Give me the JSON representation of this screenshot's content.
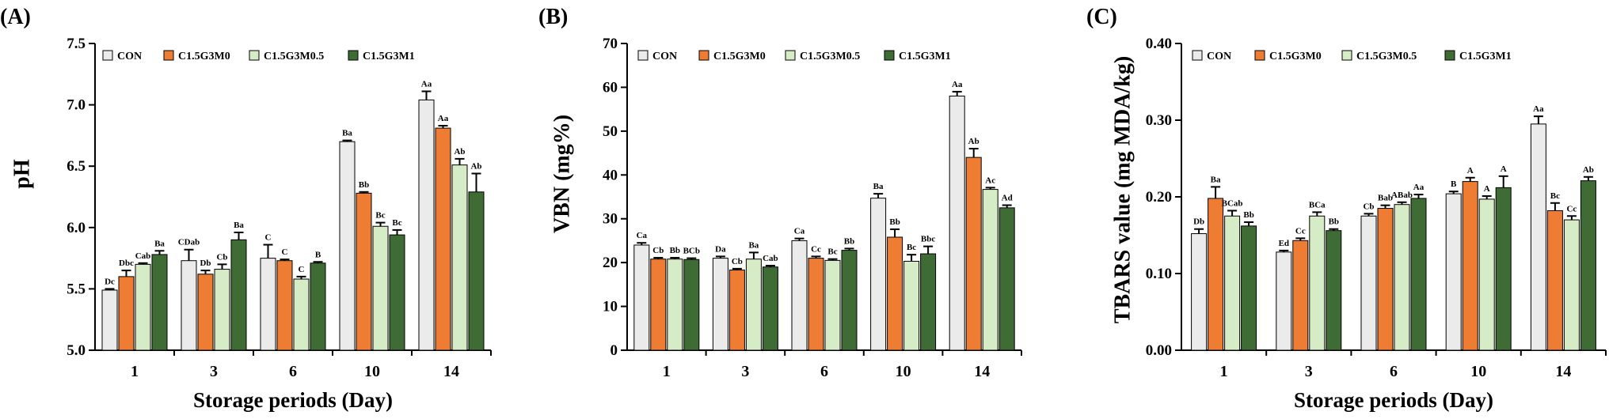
{
  "chart_data": [
    {
      "type": "bar",
      "panel_label": "(A)",
      "xlabel": "Storage periods (Day)",
      "ylabel": "pH",
      "ylim": [
        5.0,
        7.5
      ],
      "yticks": [
        "5.0",
        "5.5",
        "6.0",
        "6.5",
        "7.0",
        "7.5"
      ],
      "categories": [
        "1",
        "3",
        "6",
        "10",
        "14"
      ],
      "legend_position": "top-left",
      "series": [
        {
          "name": "CON",
          "values": [
            5.49,
            5.73,
            5.75,
            6.7,
            7.04
          ],
          "errors": [
            0.01,
            0.09,
            0.11,
            0.01,
            0.07
          ],
          "labels": [
            "Dc",
            "CDab",
            "C",
            "Ba",
            "Aa"
          ]
        },
        {
          "name": "C1.5G3M0",
          "values": [
            5.6,
            5.62,
            5.73,
            6.28,
            6.81
          ],
          "errors": [
            0.05,
            0.03,
            0.01,
            0.01,
            0.02
          ],
          "labels": [
            "Dbc",
            "Db",
            "C",
            "Bb",
            "Aa"
          ]
        },
        {
          "name": "C1.5G3M0.5",
          "values": [
            5.7,
            5.66,
            5.58,
            6.01,
            6.51
          ],
          "errors": [
            0.01,
            0.04,
            0.02,
            0.03,
            0.05
          ],
          "labels": [
            "Cab",
            "Cb",
            "C",
            "Bc",
            "Ab"
          ]
        },
        {
          "name": "C1.5G3M1",
          "values": [
            5.78,
            5.9,
            5.71,
            5.94,
            6.29
          ],
          "errors": [
            0.03,
            0.06,
            0.01,
            0.04,
            0.15
          ],
          "labels": [
            "Ba",
            "Ba",
            "B",
            "Bc",
            "Ab"
          ]
        }
      ]
    },
    {
      "type": "bar",
      "panel_label": "(B)",
      "xlabel": "",
      "ylabel": "VBN (mg%)",
      "ylim": [
        0,
        70
      ],
      "yticks": [
        "0",
        "10",
        "20",
        "30",
        "40",
        "50",
        "60",
        "70"
      ],
      "categories": [
        "1",
        "3",
        "6",
        "10",
        "14"
      ],
      "legend_position": "top-left",
      "series": [
        {
          "name": "CON",
          "values": [
            24.0,
            21.0,
            25.0,
            34.7,
            58.0
          ],
          "errors": [
            0.5,
            0.4,
            0.5,
            1.0,
            1.0
          ],
          "labels": [
            "Ca",
            "Da",
            "Ca",
            "Ba",
            "Aa"
          ]
        },
        {
          "name": "C1.5G3M0",
          "values": [
            20.8,
            18.3,
            21.0,
            25.8,
            44.0
          ],
          "errors": [
            0.3,
            0.3,
            0.4,
            1.8,
            2.0
          ],
          "labels": [
            "Cb",
            "Cb",
            "Cc",
            "Bb",
            "Ab"
          ]
        },
        {
          "name": "C1.5G3M0.5",
          "values": [
            20.8,
            20.8,
            20.5,
            20.3,
            36.7
          ],
          "errors": [
            0.3,
            1.5,
            0.3,
            1.5,
            0.4
          ],
          "labels": [
            "Bb",
            "Ba",
            "Bc",
            "Bc",
            "Ac"
          ]
        },
        {
          "name": "C1.5G3M1",
          "values": [
            20.7,
            19.0,
            22.8,
            22.0,
            32.5
          ],
          "errors": [
            0.3,
            0.3,
            0.4,
            1.7,
            0.6
          ],
          "labels": [
            "BCb",
            "Cab",
            "Bb",
            "Bbc",
            "Ad"
          ]
        }
      ]
    },
    {
      "type": "bar",
      "panel_label": "(C)",
      "xlabel": "Storage periods (Day)",
      "ylabel": "TBARS value (mg MDA/kg)",
      "ylim": [
        0.0,
        0.4
      ],
      "yticks": [
        "0.00",
        "0.10",
        "0.20",
        "0.30",
        "0.40"
      ],
      "categories": [
        "1",
        "3",
        "6",
        "10",
        "14"
      ],
      "legend_position": "top-left",
      "series": [
        {
          "name": "CON",
          "values": [
            0.152,
            0.128,
            0.175,
            0.204,
            0.295
          ],
          "errors": [
            0.006,
            0.002,
            0.003,
            0.003,
            0.01
          ],
          "labels": [
            "Db",
            "Ed",
            "Cb",
            "B",
            "Aa"
          ]
        },
        {
          "name": "C1.5G3M0",
          "values": [
            0.198,
            0.143,
            0.185,
            0.22,
            0.182
          ],
          "errors": [
            0.015,
            0.003,
            0.004,
            0.005,
            0.01
          ],
          "labels": [
            "Ba",
            "Cc",
            "Bab",
            "A",
            "Bc"
          ]
        },
        {
          "name": "C1.5G3M0.5",
          "values": [
            0.175,
            0.175,
            0.19,
            0.197,
            0.17
          ],
          "errors": [
            0.007,
            0.005,
            0.003,
            0.004,
            0.005
          ],
          "labels": [
            "BCab",
            "BCa",
            "ABab",
            "A",
            "Cc"
          ]
        },
        {
          "name": "C1.5G3M1",
          "values": [
            0.162,
            0.156,
            0.198,
            0.212,
            0.221
          ],
          "errors": [
            0.005,
            0.002,
            0.005,
            0.015,
            0.005
          ],
          "labels": [
            "Bb",
            "Bb",
            "Aa",
            "A",
            "Ab"
          ]
        }
      ]
    }
  ],
  "colors": {
    "CON": "#ebebeb",
    "C1.5G3M0": "#ee7d33",
    "C1.5G3M0.5": "#d6ecc6",
    "C1.5G3M1": "#3f6b34",
    "axis": "#000000"
  }
}
